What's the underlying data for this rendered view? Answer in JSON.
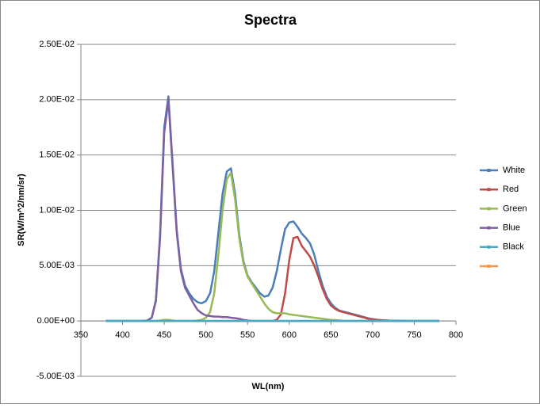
{
  "chart_data": {
    "type": "line",
    "title": "Spectra",
    "x_label": "WL(nm)",
    "y_label": "SR(W/m^2/nm/sr)",
    "x": [
      380,
      385,
      390,
      395,
      400,
      405,
      410,
      415,
      420,
      425,
      430,
      435,
      440,
      445,
      450,
      455,
      460,
      465,
      470,
      475,
      480,
      485,
      490,
      495,
      500,
      505,
      510,
      515,
      520,
      525,
      530,
      535,
      540,
      545,
      550,
      555,
      560,
      565,
      570,
      575,
      580,
      585,
      590,
      595,
      600,
      605,
      610,
      615,
      620,
      625,
      630,
      635,
      640,
      645,
      650,
      655,
      660,
      665,
      670,
      675,
      680,
      685,
      690,
      695,
      700,
      705,
      710,
      715,
      720,
      725,
      730,
      735,
      740,
      745,
      750,
      755,
      760,
      765,
      770,
      775,
      780
    ],
    "series": [
      {
        "name": "White",
        "color": "#4a7ebb",
        "values": [
          0,
          0,
          0,
          0,
          0,
          0,
          0,
          0,
          0,
          0,
          5e-05,
          0.0003,
          0.0019,
          0.0078,
          0.0175,
          0.0203,
          0.0143,
          0.0082,
          0.0047,
          0.0032,
          0.0025,
          0.002,
          0.0017,
          0.0016,
          0.0018,
          0.0025,
          0.0045,
          0.008,
          0.0115,
          0.0135,
          0.0138,
          0.0115,
          0.0078,
          0.0054,
          0.0041,
          0.0035,
          0.003,
          0.0025,
          0.0022,
          0.0023,
          0.003,
          0.0045,
          0.0065,
          0.0083,
          0.0089,
          0.009,
          0.0085,
          0.0079,
          0.0075,
          0.007,
          0.006,
          0.0045,
          0.0032,
          0.0022,
          0.0016,
          0.0012,
          0.00095,
          0.00085,
          0.00075,
          0.00065,
          0.00055,
          0.00045,
          0.00035,
          0.00025,
          0.00017,
          0.00012,
          8e-05,
          6e-05,
          4e-05,
          3e-05,
          2e-05,
          1e-05,
          0,
          0,
          0,
          0,
          0,
          0,
          0,
          0,
          0
        ]
      },
      {
        "name": "Red",
        "color": "#be4b48",
        "values": [
          0,
          0,
          0,
          0,
          0,
          0,
          0,
          0,
          0,
          0,
          0,
          0,
          0,
          0,
          0,
          0,
          0,
          0,
          0,
          0,
          0,
          0,
          0,
          0,
          0,
          0,
          0,
          0,
          0,
          0,
          0,
          0,
          0,
          0,
          0,
          0,
          0,
          0,
          0,
          0,
          0,
          0.0001,
          0.0006,
          0.0025,
          0.0055,
          0.0075,
          0.0076,
          0.0068,
          0.0063,
          0.0058,
          0.005,
          0.004,
          0.0029,
          0.002,
          0.0014,
          0.0011,
          0.0009,
          0.0008,
          0.0007,
          0.0006,
          0.0005,
          0.0004,
          0.0003,
          0.0002,
          0.00015,
          0.0001,
          7e-05,
          5e-05,
          3e-05,
          2e-05,
          0,
          0,
          0,
          0,
          0,
          0,
          0,
          0,
          0,
          0,
          0
        ]
      },
      {
        "name": "Green",
        "color": "#98b954",
        "values": [
          0,
          0,
          0,
          0,
          0,
          0,
          0,
          0,
          0,
          0,
          0,
          0,
          0,
          5e-05,
          0.0001,
          0.0001,
          5e-05,
          0,
          0,
          0,
          0,
          0,
          5e-05,
          0.0001,
          0.0003,
          0.0008,
          0.0025,
          0.006,
          0.01,
          0.0128,
          0.0134,
          0.011,
          0.0075,
          0.0052,
          0.004,
          0.0034,
          0.0028,
          0.0022,
          0.0016,
          0.0011,
          0.0008,
          0.0007,
          0.0007,
          0.0007,
          0.0006,
          0.00055,
          0.0005,
          0.00045,
          0.0004,
          0.00035,
          0.0003,
          0.00025,
          0.0002,
          0.00015,
          0.0001,
          8e-05,
          5e-05,
          0,
          0,
          0,
          0,
          0,
          0,
          0,
          0,
          0,
          0,
          0,
          0,
          0,
          0,
          0,
          0,
          0,
          0,
          0,
          0,
          0,
          0,
          0,
          0
        ]
      },
      {
        "name": "Blue",
        "color": "#7d60a0",
        "values": [
          0,
          0,
          0,
          0,
          0,
          0,
          0,
          0,
          0,
          0,
          5e-05,
          0.0003,
          0.0018,
          0.0075,
          0.017,
          0.02,
          0.014,
          0.008,
          0.0045,
          0.003,
          0.0023,
          0.0016,
          0.001,
          0.0007,
          0.0005,
          0.00045,
          0.0004,
          0.0004,
          0.00035,
          0.00035,
          0.0003,
          0.00025,
          0.0002,
          0.0001,
          5e-05,
          0,
          0,
          0,
          0,
          0,
          0,
          0,
          0,
          0,
          0,
          0,
          0,
          0,
          0,
          0,
          0,
          0,
          0,
          0,
          0,
          0,
          0,
          0,
          0,
          0,
          0,
          0,
          0,
          0,
          0,
          0,
          0,
          0,
          0,
          0,
          0,
          0,
          0,
          0,
          0,
          0,
          0,
          0,
          0,
          0,
          0
        ]
      },
      {
        "name": "Black",
        "color": "#46aac5",
        "values": [
          0,
          0,
          0,
          0,
          0,
          0,
          0,
          0,
          0,
          0,
          0,
          0,
          0,
          0,
          0,
          0,
          0,
          0,
          0,
          0,
          0,
          0,
          0,
          0,
          0,
          0,
          0,
          0,
          0,
          0,
          0,
          0,
          0,
          0,
          0,
          0,
          0,
          0,
          0,
          0,
          0,
          0,
          0,
          0,
          0,
          0,
          0,
          0,
          0,
          0,
          0,
          0,
          0,
          0,
          0,
          0,
          0,
          0,
          0,
          0,
          0,
          0,
          0,
          0,
          0,
          0,
          0,
          0,
          0,
          0,
          0,
          0,
          0,
          0,
          0,
          0,
          0,
          0,
          0,
          0,
          0
        ]
      },
      {
        "color": "#f79646",
        "values": [
          null,
          null,
          null,
          null,
          null,
          null,
          null,
          null,
          null,
          null,
          null,
          null,
          null,
          null,
          null,
          null,
          null,
          null,
          null,
          null,
          null,
          null,
          null,
          null,
          null,
          null,
          null,
          null,
          null,
          null,
          null,
          null,
          null,
          null,
          null,
          null,
          null,
          null,
          null,
          null,
          null,
          null,
          null,
          null,
          null,
          null,
          null,
          null,
          null,
          null,
          null,
          null,
          null,
          null,
          null,
          null,
          null,
          null,
          null,
          null,
          null,
          null,
          null,
          null,
          null,
          null,
          null,
          null,
          null,
          null,
          null,
          null,
          null,
          null,
          null,
          null,
          null,
          null,
          null,
          null,
          null
        ]
      }
    ],
    "xlim": [
      350,
      800
    ],
    "xticks": [
      350,
      400,
      450,
      500,
      550,
      600,
      650,
      700,
      750,
      800
    ],
    "ylim": [
      -0.005,
      0.025
    ],
    "yticks": [
      {
        "value": -0.005,
        "label": "-5.00E-03"
      },
      {
        "value": 0,
        "label": "0.00E+00"
      },
      {
        "value": 0.005,
        "label": "5.00E-03"
      },
      {
        "value": 0.01,
        "label": "1.00E-02"
      },
      {
        "value": 0.015,
        "label": "1.50E-02"
      },
      {
        "value": 0.02,
        "label": "2.00E-02"
      },
      {
        "value": 0.025,
        "label": "2.50E-02"
      }
    ],
    "grid": true,
    "legend": "right"
  }
}
